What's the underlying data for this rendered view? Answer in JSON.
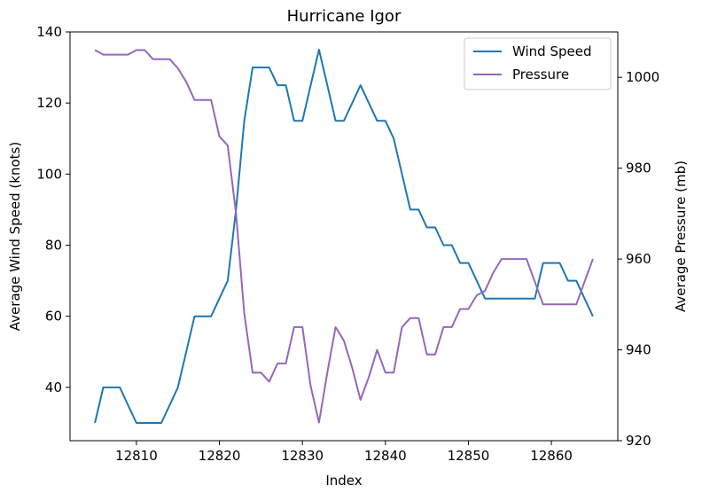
{
  "chart_data": {
    "type": "line",
    "title": "Hurricane Igor",
    "xlabel": "Index",
    "ylabel_left": "Average Wind Speed (knots)",
    "ylabel_right": "Average Pressure (mb)",
    "xlim": [
      12802,
      12868
    ],
    "ylim_left": [
      25,
      140
    ],
    "ylim_right": [
      920,
      1010
    ],
    "xticks": [
      12810,
      12820,
      12830,
      12840,
      12850,
      12860
    ],
    "yticks_left": [
      40,
      60,
      80,
      100,
      120,
      140
    ],
    "yticks_right": [
      920,
      940,
      960,
      980,
      1000
    ],
    "grid": false,
    "legend": "top-right",
    "x": [
      12805,
      12806,
      12807,
      12808,
      12809,
      12810,
      12811,
      12812,
      12813,
      12814,
      12815,
      12816,
      12817,
      12818,
      12819,
      12820,
      12821,
      12822,
      12823,
      12824,
      12825,
      12826,
      12827,
      12828,
      12829,
      12830,
      12831,
      12832,
      12833,
      12834,
      12835,
      12836,
      12837,
      12838,
      12839,
      12840,
      12841,
      12842,
      12843,
      12844,
      12845,
      12846,
      12847,
      12848,
      12849,
      12850,
      12851,
      12852,
      12853,
      12854,
      12855,
      12856,
      12857,
      12858,
      12859,
      12860,
      12861,
      12862,
      12863,
      12864,
      12865
    ],
    "series": [
      {
        "name": "Wind Speed",
        "axis": "left",
        "color": "#1f77b4",
        "values": [
          30,
          40,
          40,
          40,
          35,
          30,
          30,
          30,
          30,
          35,
          40,
          50,
          60,
          60,
          60,
          65,
          70,
          90,
          115,
          130,
          130,
          130,
          125,
          125,
          115,
          115,
          125,
          135,
          125,
          115,
          115,
          120,
          125,
          120,
          115,
          115,
          110,
          100,
          90,
          90,
          85,
          85,
          80,
          80,
          75,
          75,
          70,
          65,
          65,
          65,
          65,
          65,
          65,
          65,
          75,
          75,
          75,
          70,
          70,
          65,
          60
        ]
      },
      {
        "name": "Pressure",
        "axis": "right",
        "color": "#9467bd",
        "values": [
          1006,
          1005,
          1005,
          1005,
          1005,
          1006,
          1006,
          1004,
          1004,
          1004,
          1002,
          999,
          995,
          995,
          995,
          987,
          985,
          970,
          948,
          935,
          935,
          933,
          937,
          937,
          945,
          945,
          932,
          924,
          935,
          945,
          942,
          936,
          929,
          934,
          940,
          935,
          935,
          945,
          947,
          947,
          939,
          939,
          945,
          945,
          949,
          949,
          952,
          953,
          957,
          960,
          960,
          960,
          960,
          955,
          950,
          950,
          950,
          950,
          950,
          955,
          960
        ]
      }
    ]
  }
}
